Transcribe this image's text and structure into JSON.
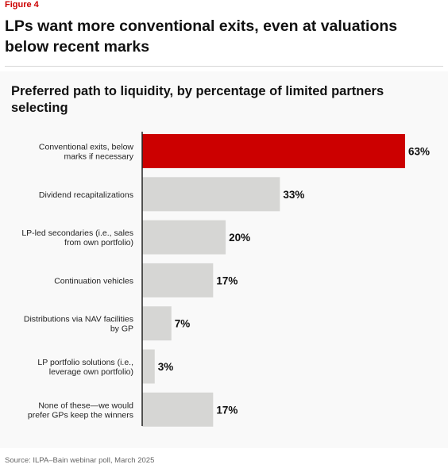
{
  "figure_label": "Figure 4",
  "figure_title": "LPs want more conventional exits, even at valuations below recent marks",
  "source": "Source: ILPA–Bain webinar poll, March 2025",
  "colors": {
    "highlight": "#cc0000",
    "bar": "#d6d6d4",
    "axis": "#222222"
  },
  "chart_data": {
    "type": "bar",
    "orientation": "horizontal",
    "title": "Preferred path to liquidity, by percentage of limited partners selecting",
    "xlabel": "",
    "ylabel": "",
    "unit": "%",
    "xlim": [
      0,
      63
    ],
    "grid": false,
    "categories": [
      [
        "Conventional exits, below",
        "marks if necessary"
      ],
      [
        "Dividend recapitalizations"
      ],
      [
        "LP-led secondaries (i.e., sales",
        "from own portfolio)"
      ],
      [
        "Continuation vehicles"
      ],
      [
        "Distributions via NAV facilities",
        "by GP"
      ],
      [
        "LP portfolio solutions (i.e.,",
        "leverage own portfolio)"
      ],
      [
        "None of these—we would",
        "prefer GPs keep the winners"
      ]
    ],
    "values": [
      63,
      33,
      20,
      17,
      7,
      3,
      17
    ],
    "value_labels": [
      "63%",
      "33%",
      "20%",
      "17%",
      "7%",
      "3%",
      "17%"
    ],
    "highlight_index": 0
  }
}
